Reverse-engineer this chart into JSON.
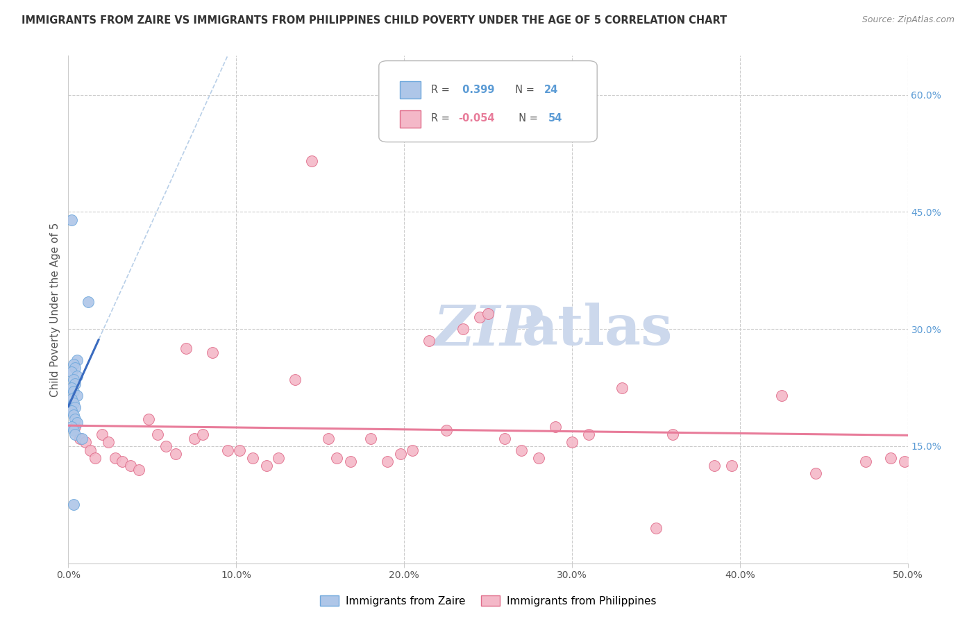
{
  "title": "IMMIGRANTS FROM ZAIRE VS IMMIGRANTS FROM PHILIPPINES CHILD POVERTY UNDER THE AGE OF 5 CORRELATION CHART",
  "source": "Source: ZipAtlas.com",
  "ylabel": "Child Poverty Under the Age of 5",
  "xlim": [
    0,
    50
  ],
  "ylim": [
    0,
    65
  ],
  "zaire_color": "#aec6e8",
  "zaire_edge": "#6fa8dc",
  "philippines_color": "#f4b8c8",
  "philippines_edge": "#e06c8a",
  "trend_zaire_color": "#3a6bbf",
  "trend_philippines_color": "#e87c9a",
  "dashed_line_color": "#b8cfe8",
  "watermark_color": "#ccd8ec",
  "background_color": "#ffffff",
  "grid_color": "#cccccc",
  "title_color": "#333333",
  "axis_label_color": "#555555",
  "right_axis_color": "#5b9bd5",
  "zaire_R": "0.399",
  "zaire_N": "24",
  "phil_R": "-0.054",
  "phil_N": "54",
  "zaire_points": [
    [
      0.2,
      44.0
    ],
    [
      1.2,
      33.5
    ],
    [
      0.5,
      26.0
    ],
    [
      0.3,
      25.5
    ],
    [
      0.4,
      25.0
    ],
    [
      0.2,
      24.5
    ],
    [
      0.5,
      24.0
    ],
    [
      0.3,
      23.5
    ],
    [
      0.4,
      23.0
    ],
    [
      0.2,
      22.5
    ],
    [
      0.3,
      22.0
    ],
    [
      0.5,
      21.5
    ],
    [
      0.2,
      21.0
    ],
    [
      0.3,
      20.5
    ],
    [
      0.4,
      20.0
    ],
    [
      0.2,
      19.5
    ],
    [
      0.3,
      19.0
    ],
    [
      0.4,
      18.5
    ],
    [
      0.5,
      18.0
    ],
    [
      0.2,
      17.5
    ],
    [
      0.3,
      17.0
    ],
    [
      0.4,
      16.5
    ],
    [
      0.3,
      7.5
    ],
    [
      0.8,
      16.0
    ]
  ],
  "philippines_points": [
    [
      0.4,
      17.5
    ],
    [
      0.7,
      16.0
    ],
    [
      1.0,
      15.5
    ],
    [
      1.3,
      14.5
    ],
    [
      1.6,
      13.5
    ],
    [
      2.0,
      16.5
    ],
    [
      2.4,
      15.5
    ],
    [
      2.8,
      13.5
    ],
    [
      3.2,
      13.0
    ],
    [
      3.7,
      12.5
    ],
    [
      4.2,
      12.0
    ],
    [
      4.8,
      18.5
    ],
    [
      5.3,
      16.5
    ],
    [
      5.8,
      15.0
    ],
    [
      6.4,
      14.0
    ],
    [
      7.0,
      27.5
    ],
    [
      7.5,
      16.0
    ],
    [
      8.0,
      16.5
    ],
    [
      8.6,
      27.0
    ],
    [
      9.5,
      14.5
    ],
    [
      10.2,
      14.5
    ],
    [
      11.0,
      13.5
    ],
    [
      11.8,
      12.5
    ],
    [
      12.5,
      13.5
    ],
    [
      13.5,
      23.5
    ],
    [
      14.5,
      51.5
    ],
    [
      15.5,
      16.0
    ],
    [
      16.0,
      13.5
    ],
    [
      16.8,
      13.0
    ],
    [
      18.0,
      16.0
    ],
    [
      19.0,
      13.0
    ],
    [
      19.8,
      14.0
    ],
    [
      20.5,
      14.5
    ],
    [
      21.5,
      28.5
    ],
    [
      22.5,
      17.0
    ],
    [
      23.5,
      30.0
    ],
    [
      24.5,
      31.5
    ],
    [
      25.0,
      32.0
    ],
    [
      26.0,
      16.0
    ],
    [
      27.0,
      14.5
    ],
    [
      28.0,
      13.5
    ],
    [
      29.0,
      17.5
    ],
    [
      30.0,
      15.5
    ],
    [
      31.0,
      16.5
    ],
    [
      33.0,
      22.5
    ],
    [
      35.0,
      4.5
    ],
    [
      36.0,
      16.5
    ],
    [
      38.5,
      12.5
    ],
    [
      39.5,
      12.5
    ],
    [
      42.5,
      21.5
    ],
    [
      44.5,
      11.5
    ],
    [
      47.5,
      13.0
    ],
    [
      49.0,
      13.5
    ],
    [
      49.8,
      13.0
    ]
  ]
}
